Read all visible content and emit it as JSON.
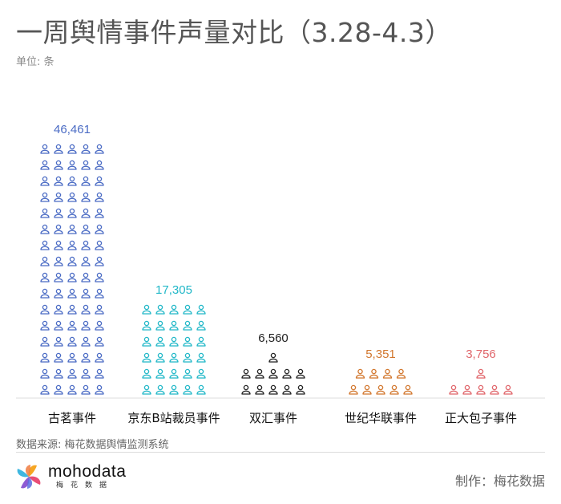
{
  "title": "一周舆情事件声量对比（3.28-4.3）",
  "unit_label": "单位: 条",
  "source_label": "数据来源: 梅花数据舆情监测系统",
  "credit_label": "制作：梅花数据",
  "logo": {
    "name": "mohodata",
    "sub": "梅花数据"
  },
  "chart_data": {
    "type": "bar",
    "subtype": "pictogram",
    "icon": "person-icon",
    "title": "一周舆情事件声量对比（3.28-4.3）",
    "ylabel": "单位: 条",
    "categories": [
      "古茗事件",
      "京东B站裁员事件",
      "双汇事件",
      "世纪华联事件",
      "正大包子事件"
    ],
    "values": [
      46461,
      17305,
      6560,
      5351,
      3756
    ],
    "value_labels": [
      "46,461",
      "17,305",
      "6,560",
      "5,351",
      "3,756"
    ],
    "colors": [
      "#4a6bc4",
      "#22b8c8",
      "#222222",
      "#d2772e",
      "#e0666b"
    ],
    "icons_per_row": 5,
    "icon_counts": [
      80,
      30,
      11,
      9,
      6
    ]
  }
}
